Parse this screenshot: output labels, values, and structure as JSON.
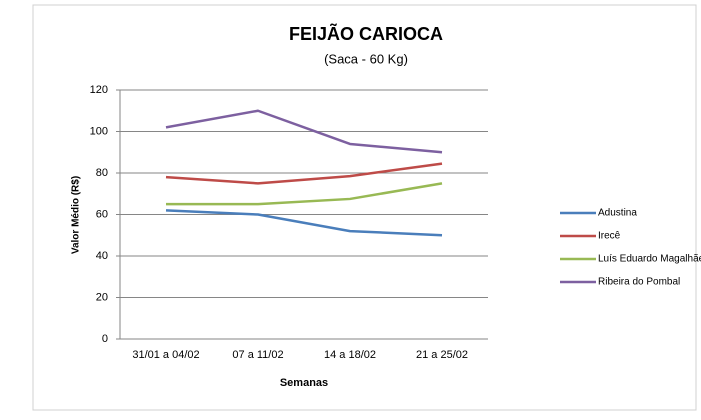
{
  "chart_data": {
    "type": "line",
    "title": "FEIJÃO CARIOCA",
    "subtitle": "(Saca - 60 Kg)",
    "x_label": "Semanas",
    "y_label": "Valor Médio (R$)",
    "categories": [
      "31/01 a 04/02",
      "07 a 11/02",
      "14 a 18/02",
      "21 a 25/02"
    ],
    "series": [
      {
        "name": "Adustina",
        "color": "#4a7ebb",
        "values": [
          62,
          60,
          52,
          50
        ]
      },
      {
        "name": "Irecê",
        "color": "#be4b48",
        "values": [
          78,
          75,
          78.5,
          84.5
        ]
      },
      {
        "name": "Luís Eduardo Magalhãe",
        "color": "#98b954",
        "values": [
          65,
          65,
          67.5,
          75
        ]
      },
      {
        "name": "Ribeira do Pombal",
        "color": "#7d60a0",
        "values": [
          102,
          110,
          94,
          90
        ]
      }
    ],
    "ylim": [
      0,
      120
    ],
    "yticks": [
      0,
      20,
      40,
      60,
      80,
      100,
      120
    ],
    "grid": true,
    "legend": "right"
  }
}
